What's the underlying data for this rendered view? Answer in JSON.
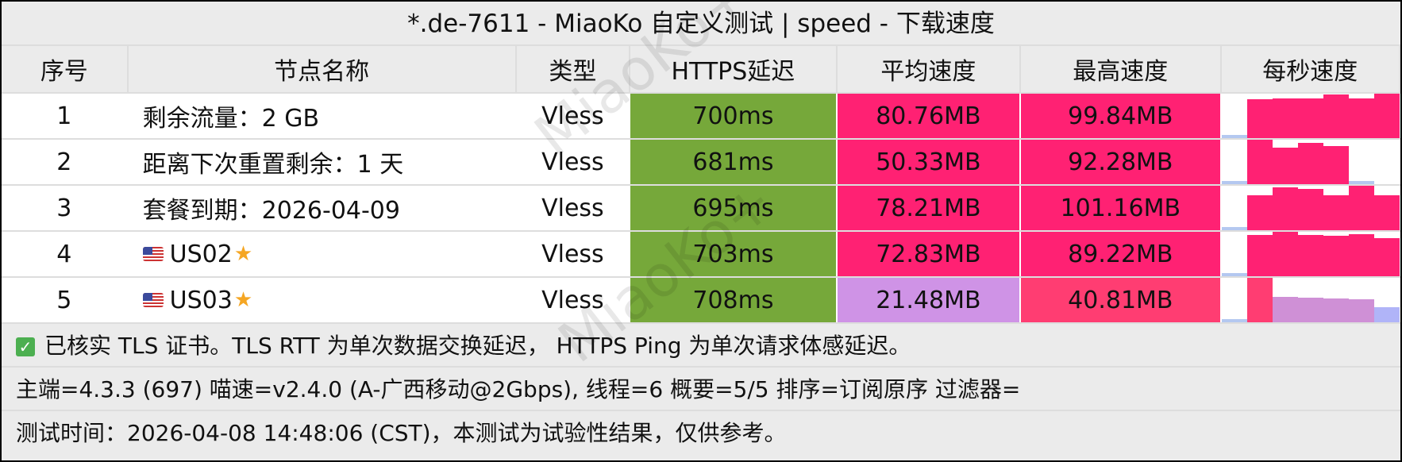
{
  "title": "*.de-7611 - MiaoKo 自定义测试 | speed - 下载速度",
  "watermark": "MiaoKo+",
  "columns": [
    "序号",
    "节点名称",
    "类型",
    "HTTPS延迟",
    "平均速度",
    "最高速度",
    "每秒速度"
  ],
  "colors": {
    "latency_good": "#76a83a",
    "speed_high": "#ff2173",
    "speed_mid": "#ff3d72",
    "speed_low": "#cf93e6",
    "chart_base": "#b4c8f0"
  },
  "rows": [
    {
      "index": "1",
      "name": "剩余流量：2 GB",
      "flag": false,
      "type": "Vless",
      "latency": "700ms",
      "avg": "80.76MB",
      "max": "99.84MB",
      "avg_color": "#ff2173",
      "max_color": "#ff2173",
      "per_second": [
        7,
        88,
        90,
        90,
        98,
        90,
        100
      ]
    },
    {
      "index": "2",
      "name": "距离下次重置剩余：1 天",
      "flag": false,
      "type": "Vless",
      "latency": "681ms",
      "avg": "50.33MB",
      "max": "92.28MB",
      "avg_color": "#ff2173",
      "max_color": "#ff2173",
      "per_second": [
        7,
        92,
        75,
        86,
        79,
        7,
        0
      ]
    },
    {
      "index": "3",
      "name": "套餐到期：2026-04-09",
      "flag": false,
      "type": "Vless",
      "latency": "695ms",
      "avg": "78.21MB",
      "max": "101.16MB",
      "avg_color": "#ff2173",
      "max_color": "#ff2173",
      "per_second": [
        7,
        79,
        98,
        93,
        79,
        101,
        80
      ]
    },
    {
      "index": "4",
      "name": "US02",
      "flag": true,
      "type": "Vless",
      "latency": "703ms",
      "avg": "72.83MB",
      "max": "89.22MB",
      "avg_color": "#ff2173",
      "max_color": "#ff2173",
      "per_second": [
        7,
        83,
        89,
        83,
        81,
        84,
        77
      ]
    },
    {
      "index": "5",
      "name": "US03",
      "flag": true,
      "type": "Vless",
      "latency": "708ms",
      "avg": "21.48MB",
      "max": "40.81MB",
      "avg_color": "#cf93e6",
      "max_color": "#ff3d72",
      "per_second": [
        2.5,
        40.8,
        23.6,
        22.7,
        21.8,
        20.9,
        13.6
      ]
    }
  ],
  "footer": {
    "tls_note": "已核实 TLS 证书。TLS RTT 为单次数据交换延迟， HTTPS Ping 为单次请求体感延迟。",
    "info": "主端=4.3.3 (697) 喵速=v2.4.0 (A-广西移动@2Gbps), 线程=6 概要=5/5 排序=订阅原序 过滤器=",
    "time": "测试时间：2026-04-08 14:48:06 (CST)，本测试为试验性结果，仅供参考。"
  }
}
